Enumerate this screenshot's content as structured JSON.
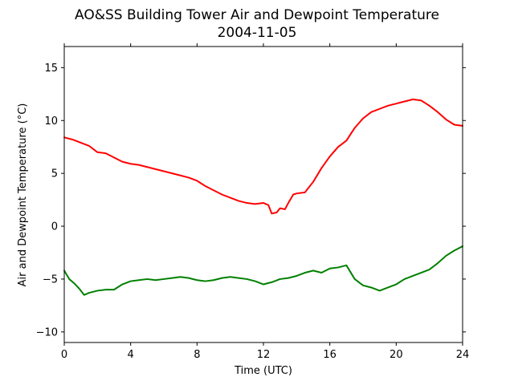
{
  "chart_data": {
    "type": "line",
    "title": "AO&SS Building Tower Air and Dewpoint Temperature",
    "subtitle": "2004-11-05",
    "xlabel": "Time (UTC)",
    "ylabel": "Air and Dewpoint Temperature (°C)",
    "xlim": [
      0,
      24
    ],
    "ylim": [
      -11,
      17
    ],
    "xticks": [
      0,
      4,
      8,
      12,
      16,
      20,
      24
    ],
    "yticks": [
      -10,
      -5,
      0,
      5,
      10,
      15
    ],
    "grid": false,
    "legend": "none",
    "series": [
      {
        "color": "#ff0000",
        "x": [
          0,
          0.5,
          1,
          1.5,
          2,
          2.5,
          3,
          3.5,
          4,
          4.5,
          5,
          5.5,
          6,
          6.5,
          7,
          7.5,
          8,
          8.5,
          9,
          9.5,
          10,
          10.5,
          11,
          11.5,
          12,
          12.3,
          12.5,
          12.8,
          13,
          13.3,
          13.5,
          13.8,
          14,
          14.5,
          15,
          15.5,
          16,
          16.5,
          17,
          17.5,
          18,
          18.5,
          19,
          19.5,
          20,
          20.5,
          21,
          21.5,
          22,
          22.5,
          23,
          23.5,
          24
        ],
        "values": [
          8.4,
          8.2,
          7.9,
          7.6,
          7.0,
          6.9,
          6.5,
          6.1,
          5.9,
          5.8,
          5.6,
          5.4,
          5.2,
          5.0,
          4.8,
          4.6,
          4.3,
          3.8,
          3.4,
          3.0,
          2.7,
          2.4,
          2.2,
          2.1,
          2.2,
          2.0,
          1.2,
          1.3,
          1.7,
          1.6,
          2.2,
          3.0,
          3.1,
          3.2,
          4.2,
          5.5,
          6.6,
          7.5,
          8.1,
          9.3,
          10.2,
          10.8,
          11.1,
          11.4,
          11.6,
          11.8,
          12.0,
          11.9,
          11.4,
          10.8,
          10.1,
          9.6,
          9.5
        ]
      },
      {
        "color": "#008000",
        "x": [
          0,
          0.3,
          0.6,
          0.9,
          1.2,
          1.5,
          2,
          2.5,
          3,
          3.5,
          4,
          4.5,
          5,
          5.5,
          6,
          6.5,
          7,
          7.5,
          8,
          8.5,
          9,
          9.5,
          10,
          10.5,
          11,
          11.5,
          12,
          12.5,
          13,
          13.5,
          14,
          14.5,
          15,
          15.5,
          16,
          16.5,
          17,
          17.5,
          18,
          18.5,
          19,
          19.5,
          20,
          20.5,
          21,
          21.5,
          22,
          22.5,
          23,
          23.5,
          24
        ],
        "values": [
          -4.2,
          -5.0,
          -5.4,
          -5.9,
          -6.5,
          -6.3,
          -6.1,
          -6.0,
          -6.0,
          -5.5,
          -5.2,
          -5.1,
          -5.0,
          -5.1,
          -5.0,
          -4.9,
          -4.8,
          -4.9,
          -5.1,
          -5.2,
          -5.1,
          -4.9,
          -4.8,
          -4.9,
          -5.0,
          -5.2,
          -5.5,
          -5.3,
          -5.0,
          -4.9,
          -4.7,
          -4.4,
          -4.2,
          -4.4,
          -4.0,
          -3.9,
          -3.7,
          -5.0,
          -5.6,
          -5.8,
          -6.1,
          -5.8,
          -5.5,
          -5.0,
          -4.7,
          -4.4,
          -4.1,
          -3.5,
          -2.8,
          -2.3,
          -1.9
        ]
      }
    ]
  }
}
